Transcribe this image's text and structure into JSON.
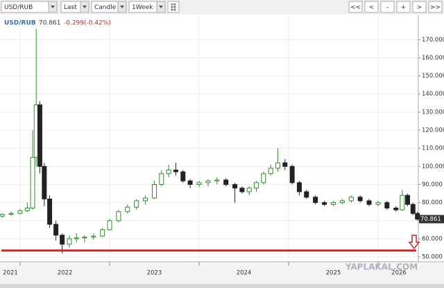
{
  "toolbar": {
    "symbol": "USD/RUB",
    "price_type": "Last",
    "chart_type": "Candle",
    "period": "1Week",
    "nav": [
      "<<",
      "<",
      "-",
      "+",
      ">",
      ">>"
    ]
  },
  "chart_data": {
    "type": "candlestick",
    "symbol": "USD/RUB",
    "change": "-0.299(-0.42%)",
    "watermark": "YAPLAKAL.COM",
    "up_color": "#2e8b2e",
    "down_color": "#222222",
    "support_line": 53.5,
    "support_color": "#c0282d",
    "x": [
      2021.8,
      2021.9,
      2022.0,
      2022.08,
      2022.14,
      2022.18,
      2022.22,
      2022.27,
      2022.33,
      2022.4,
      2022.47,
      2022.55,
      2022.63,
      2022.72,
      2022.82,
      2022.92,
      2023.0,
      2023.1,
      2023.2,
      2023.3,
      2023.4,
      2023.5,
      2023.58,
      2023.66,
      2023.74,
      2023.82,
      2023.9,
      2024.0,
      2024.1,
      2024.2,
      2024.3,
      2024.4,
      2024.48,
      2024.56,
      2024.64,
      2024.72,
      2024.8,
      2024.88,
      2024.96,
      2025.04,
      2025.12,
      2025.2,
      2025.3,
      2025.4,
      2025.5,
      2025.6,
      2025.7,
      2025.8,
      2025.9,
      2026.0,
      2026.1,
      2026.2,
      2026.27,
      2026.33,
      2026.39,
      2026.44
    ],
    "open": [
      72.5,
      73.5,
      74,
      75.5,
      77,
      105,
      134,
      100,
      82,
      68,
      62,
      57,
      60,
      60.5,
      61,
      61.5,
      65,
      70,
      75,
      77.5,
      81,
      82.5,
      90,
      96,
      98,
      97,
      92,
      90,
      91,
      92,
      92.5,
      90,
      88,
      86,
      88,
      91,
      96,
      99,
      102,
      100,
      91,
      86,
      83,
      80,
      79,
      80,
      81,
      83,
      81,
      79,
      80,
      77,
      76,
      84,
      79,
      74
    ],
    "high": [
      74,
      75,
      76.5,
      80,
      120,
      176,
      136,
      102,
      84,
      70,
      63,
      62,
      63,
      62,
      63,
      66,
      71,
      76,
      79,
      82,
      84,
      92,
      98,
      101,
      102,
      98,
      93,
      92,
      93,
      94,
      93.5,
      91,
      89,
      89,
      92,
      97,
      101,
      110,
      104,
      101,
      92,
      87,
      84,
      81,
      81,
      82,
      84,
      84,
      82,
      81,
      81,
      78,
      87,
      85,
      80,
      75
    ],
    "low": [
      71.5,
      72.8,
      73.5,
      74.8,
      76,
      100,
      96,
      78,
      66,
      59,
      52,
      55,
      58,
      58,
      59.5,
      61,
      64.5,
      69,
      74,
      76,
      79,
      82,
      89,
      94,
      95,
      91,
      88,
      88.5,
      89,
      90,
      89,
      80,
      85,
      84,
      86,
      90,
      95,
      97,
      98,
      90,
      84,
      82,
      79,
      78,
      78,
      79,
      80,
      80,
      78,
      78,
      76,
      75,
      75.5,
      78,
      73,
      70
    ],
    "close": [
      73.5,
      74,
      75.5,
      77,
      105,
      134,
      100,
      82,
      68,
      62,
      57,
      60,
      60.5,
      61,
      61.5,
      65,
      70,
      75,
      77.5,
      81,
      82.5,
      90,
      96,
      98,
      97,
      92,
      90,
      91,
      92,
      92.5,
      90,
      88,
      86,
      88,
      91,
      96,
      99,
      102,
      100,
      91,
      86,
      83,
      80,
      79,
      80,
      81,
      83,
      81,
      79,
      80,
      77,
      76,
      84,
      79,
      74,
      70.861
    ],
    "xlim": [
      2021.775,
      2026.45
    ],
    "xticks": [
      2021,
      2022,
      2023,
      2024,
      2025,
      2026
    ],
    "ylim": [
      48.5,
      183.5
    ],
    "yticks": [
      {
        "value": 50,
        "label": "50.000"
      },
      {
        "value": 60,
        "label": "60.000"
      },
      {
        "value": 70,
        "label": "70.000"
      },
      {
        "value": 80,
        "label": "80.000"
      },
      {
        "value": 90,
        "label": "90.000"
      },
      {
        "value": 100,
        "label": "100.000"
      },
      {
        "value": 110,
        "label": "110.000"
      },
      {
        "value": 120,
        "label": "120.000"
      },
      {
        "value": 130,
        "label": "130.000"
      },
      {
        "value": 140,
        "label": "140.000"
      },
      {
        "value": 150,
        "label": "150.000"
      },
      {
        "value": 160,
        "label": "160.000"
      },
      {
        "value": 170,
        "label": "170.000"
      }
    ],
    "grid": true
  }
}
